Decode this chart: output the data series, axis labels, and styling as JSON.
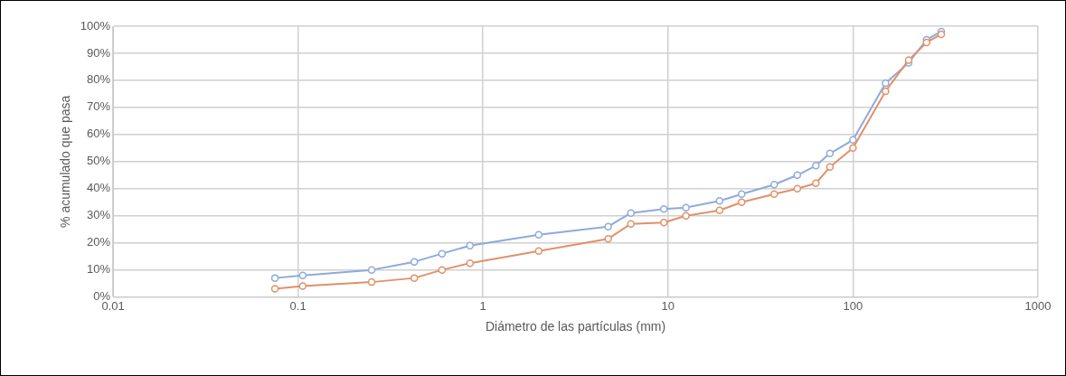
{
  "chart_data": {
    "type": "line",
    "xlabel": "Diámetro de las partículas (mm)",
    "ylabel": "% acumulado que pasa",
    "log": "x",
    "grid": true,
    "legend": false,
    "marker": "circle",
    "line_style": "solid",
    "x": [
      0.075,
      0.106,
      0.25,
      0.425,
      0.6,
      0.85,
      2,
      4.75,
      6.3,
      9.5,
      12.5,
      19,
      25,
      37.5,
      50,
      63,
      75,
      100,
      150,
      200,
      250,
      300
    ],
    "series": [
      {
        "color": "#8eaadb",
        "values": [
          7,
          8,
          10,
          13,
          16,
          19,
          23,
          26,
          31,
          32.5,
          33,
          35.5,
          38,
          41.5,
          45,
          48.5,
          53,
          58,
          79,
          86.5,
          95,
          98
        ]
      },
      {
        "color": "#e0916a",
        "values": [
          3,
          4,
          5.5,
          7,
          10,
          12.5,
          17,
          21.5,
          27,
          27.5,
          30,
          32,
          35,
          38,
          40,
          42,
          48,
          55,
          76,
          87.5,
          94,
          97
        ]
      }
    ],
    "xlim": [
      0.01,
      1000
    ],
    "xticks": [
      0.01,
      0.1,
      1,
      10,
      100,
      1000
    ],
    "ylim": [
      0,
      100
    ],
    "yticks": [
      {
        "value": 0,
        "label": "0%"
      },
      {
        "value": 10,
        "label": "10%"
      },
      {
        "value": 20,
        "label": "20%"
      },
      {
        "value": 30,
        "label": "30%"
      },
      {
        "value": 40,
        "label": "40%"
      },
      {
        "value": 50,
        "label": "50%"
      },
      {
        "value": 60,
        "label": "60%"
      },
      {
        "value": 70,
        "label": "70%"
      },
      {
        "value": 80,
        "label": "80%"
      },
      {
        "value": 90,
        "label": "90%"
      },
      {
        "value": 100,
        "label": "100%"
      }
    ]
  }
}
